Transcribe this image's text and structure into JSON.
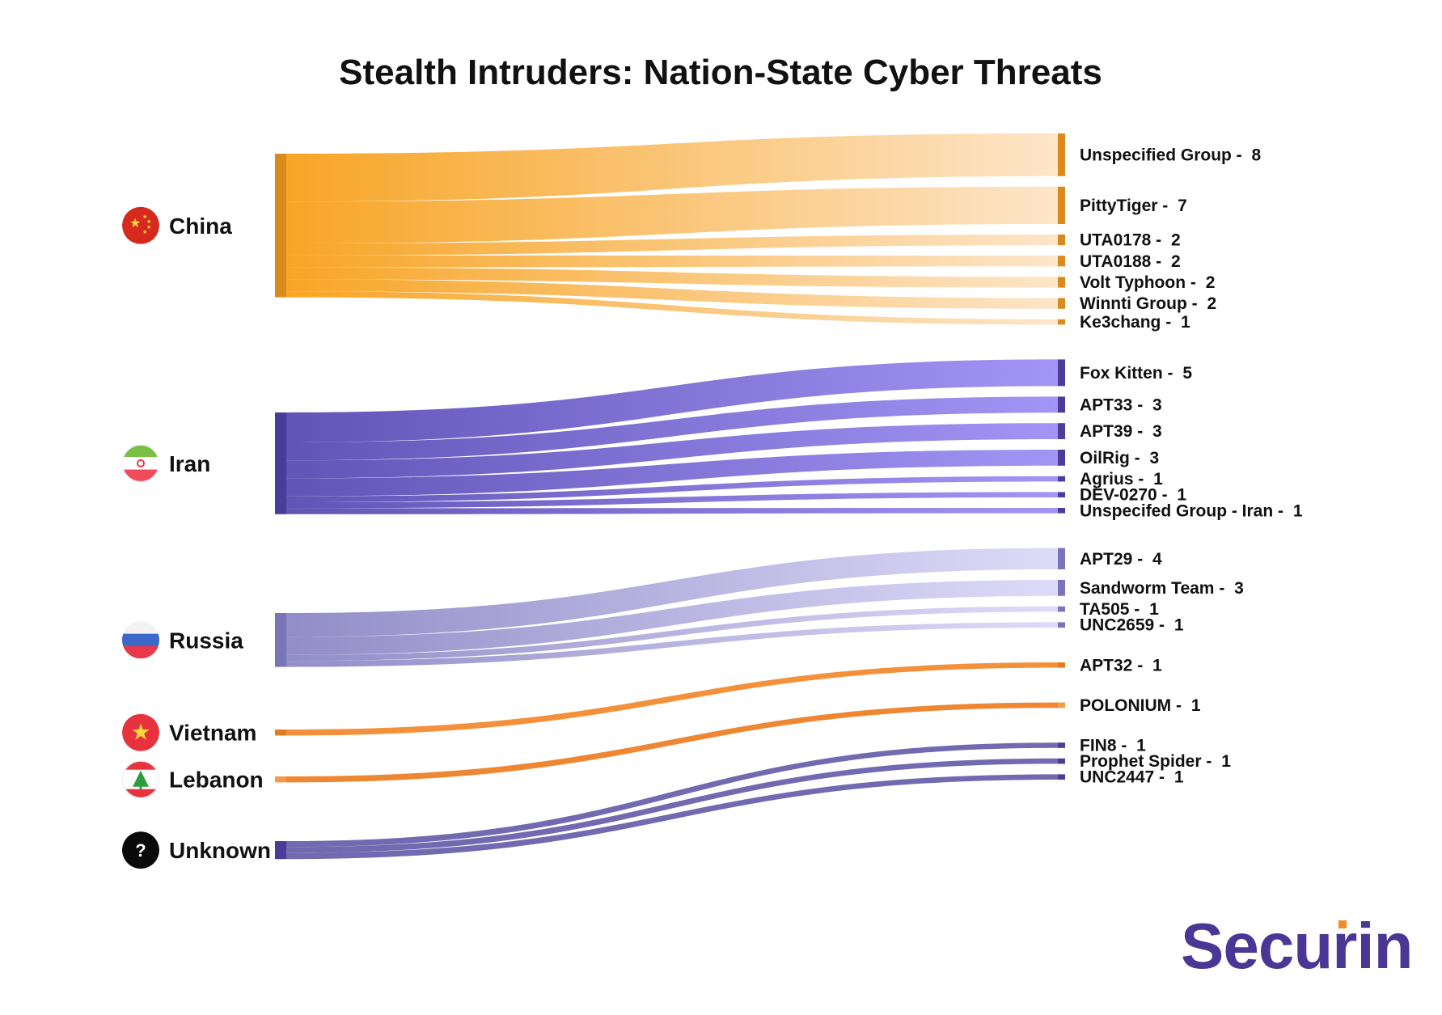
{
  "chart_data": {
    "type": "sankey",
    "title": "Stealth Intruders: Nation-State Cyber Threats",
    "sources": [
      {
        "name": "China",
        "icon": "china-flag-icon",
        "color": "#f7a01a",
        "color_end": "#fde4c6",
        "node_color": "#d98a1c",
        "targets": [
          {
            "name": "Unspecified Group",
            "value": 8
          },
          {
            "name": "PittyTiger",
            "value": 7
          },
          {
            "name": "UTA0178",
            "value": 2
          },
          {
            "name": "UTA0188",
            "value": 2
          },
          {
            "name": "Volt Typhoon",
            "value": 2
          },
          {
            "name": "Winnti Group",
            "value": 2
          },
          {
            "name": "Ke3chang",
            "value": 1
          }
        ]
      },
      {
        "name": "Iran",
        "icon": "iran-flag-icon",
        "color": "#5a4bb3",
        "color_end": "#9e8ff5",
        "node_color": "#4a3c99",
        "targets": [
          {
            "name": "Fox Kitten",
            "value": 5
          },
          {
            "name": "APT33",
            "value": 3
          },
          {
            "name": "APT39",
            "value": 3
          },
          {
            "name": "OilRig",
            "value": 3
          },
          {
            "name": "Agrius",
            "value": 1
          },
          {
            "name": "DEV-0270",
            "value": 1
          },
          {
            "name": "Unspecifed Group - Iran",
            "value": 1
          }
        ]
      },
      {
        "name": "Russia",
        "icon": "russia-flag-icon",
        "color": "#8c87c5",
        "color_end": "#dcd9f8",
        "node_color": "#7a74b8",
        "targets": [
          {
            "name": "APT29",
            "value": 4
          },
          {
            "name": "Sandworm Team",
            "value": 3
          },
          {
            "name": "TA505",
            "value": 1
          },
          {
            "name": "UNC2659",
            "value": 1
          }
        ]
      },
      {
        "name": "Vietnam",
        "icon": "vietnam-flag-icon",
        "color": "#f48a30",
        "color_end": "#f48a30",
        "node_color": "#e57a20",
        "targets": [
          {
            "name": "APT32",
            "value": 1
          }
        ]
      },
      {
        "name": "Lebanon",
        "icon": "lebanon-flag-icon",
        "color": "#ee7f27",
        "color_end": "#ee7f27",
        "node_color": "#f49a4a",
        "targets": [
          {
            "name": "POLONIUM",
            "value": 1
          }
        ]
      },
      {
        "name": "Unknown",
        "icon": "question-mark-icon",
        "color": "#6b62ad",
        "color_end": "#6b62ad",
        "node_color": "#4a3c99",
        "targets": [
          {
            "name": "FIN8",
            "value": 1
          },
          {
            "name": "Prophet Spider",
            "value": 1
          },
          {
            "name": "UNC2447",
            "value": 1
          }
        ]
      }
    ]
  },
  "brand": {
    "name": "Securin",
    "color": "#4a3795",
    "accent": "#f28c28"
  }
}
